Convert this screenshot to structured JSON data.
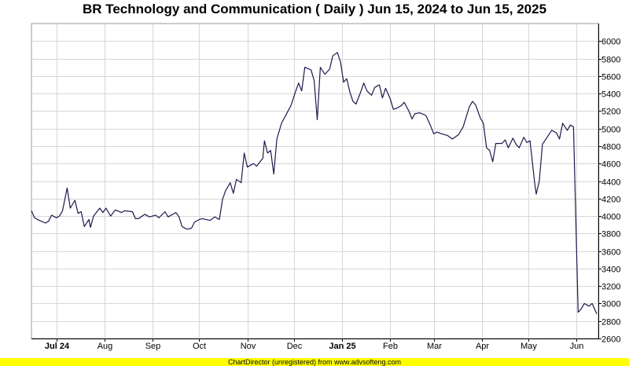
{
  "chart_data": {
    "type": "line",
    "title": "BR Technology and Communication ( Daily ) Jun 15, 2024 to Jun 15, 2025",
    "xlabel": "",
    "ylabel": "",
    "ylim": [
      2600,
      6200
    ],
    "y_ticks": [
      2600,
      2800,
      3000,
      3200,
      3400,
      3600,
      3800,
      4000,
      4200,
      4400,
      4600,
      4800,
      5000,
      5200,
      5400,
      5600,
      5800,
      6000
    ],
    "x_range": [
      "2024-06-15",
      "2025-06-15"
    ],
    "x_tick_labels": [
      {
        "date": "2024-07-01",
        "label": "Jul 24",
        "bold": true
      },
      {
        "date": "2024-08-01",
        "label": "Aug",
        "bold": false
      },
      {
        "date": "2024-09-01",
        "label": "Sep",
        "bold": false
      },
      {
        "date": "2024-10-01",
        "label": "Oct",
        "bold": false
      },
      {
        "date": "2024-11-01",
        "label": "Nov",
        "bold": false
      },
      {
        "date": "2024-12-01",
        "label": "Dec",
        "bold": false
      },
      {
        "date": "2025-01-01",
        "label": "Jan 25",
        "bold": true
      },
      {
        "date": "2025-02-01",
        "label": "Feb",
        "bold": false
      },
      {
        "date": "2025-03-01",
        "label": "Mar",
        "bold": false
      },
      {
        "date": "2025-04-01",
        "label": "Apr",
        "bold": false
      },
      {
        "date": "2025-05-01",
        "label": "May",
        "bold": false
      },
      {
        "date": "2025-06-01",
        "label": "Jun",
        "bold": false
      }
    ],
    "grid": true,
    "line_color": "#1a1a4e",
    "series": [
      {
        "points": [
          [
            "2024-06-15",
            4060
          ],
          [
            "2024-06-17",
            3980
          ],
          [
            "2024-06-20",
            3950
          ],
          [
            "2024-06-24",
            3920
          ],
          [
            "2024-06-26",
            3940
          ],
          [
            "2024-06-28",
            4010
          ],
          [
            "2024-07-01",
            3980
          ],
          [
            "2024-07-03",
            4000
          ],
          [
            "2024-07-05",
            4060
          ],
          [
            "2024-07-08",
            4320
          ],
          [
            "2024-07-10",
            4090
          ],
          [
            "2024-07-13",
            4180
          ],
          [
            "2024-07-15",
            4030
          ],
          [
            "2024-07-17",
            4050
          ],
          [
            "2024-07-19",
            3880
          ],
          [
            "2024-07-22",
            3960
          ],
          [
            "2024-07-23",
            3870
          ],
          [
            "2024-07-25",
            4000
          ],
          [
            "2024-07-29",
            4090
          ],
          [
            "2024-07-31",
            4040
          ],
          [
            "2024-08-02",
            4090
          ],
          [
            "2024-08-05",
            4000
          ],
          [
            "2024-08-08",
            4070
          ],
          [
            "2024-08-12",
            4040
          ],
          [
            "2024-08-14",
            4060
          ],
          [
            "2024-08-19",
            4050
          ],
          [
            "2024-08-21",
            3970
          ],
          [
            "2024-08-23",
            3970
          ],
          [
            "2024-08-27",
            4020
          ],
          [
            "2024-08-30",
            3990
          ],
          [
            "2024-09-03",
            4010
          ],
          [
            "2024-09-05",
            3980
          ],
          [
            "2024-09-09",
            4050
          ],
          [
            "2024-09-11",
            3990
          ],
          [
            "2024-09-13",
            4010
          ],
          [
            "2024-09-16",
            4040
          ],
          [
            "2024-09-18",
            3990
          ],
          [
            "2024-09-20",
            3880
          ],
          [
            "2024-09-23",
            3850
          ],
          [
            "2024-09-26",
            3860
          ],
          [
            "2024-09-28",
            3930
          ],
          [
            "2024-10-01",
            3960
          ],
          [
            "2024-10-03",
            3970
          ],
          [
            "2024-10-08",
            3950
          ],
          [
            "2024-10-11",
            3990
          ],
          [
            "2024-10-14",
            3960
          ],
          [
            "2024-10-16",
            4190
          ],
          [
            "2024-10-18",
            4290
          ],
          [
            "2024-10-21",
            4380
          ],
          [
            "2024-10-23",
            4260
          ],
          [
            "2024-10-25",
            4420
          ],
          [
            "2024-10-28",
            4380
          ],
          [
            "2024-10-30",
            4720
          ],
          [
            "2024-11-01",
            4560
          ],
          [
            "2024-11-05",
            4600
          ],
          [
            "2024-11-07",
            4570
          ],
          [
            "2024-11-11",
            4660
          ],
          [
            "2024-11-12",
            4860
          ],
          [
            "2024-11-14",
            4720
          ],
          [
            "2024-11-16",
            4750
          ],
          [
            "2024-11-18",
            4480
          ],
          [
            "2024-11-20",
            4880
          ],
          [
            "2024-11-23",
            5060
          ],
          [
            "2024-11-26",
            5160
          ],
          [
            "2024-11-29",
            5260
          ],
          [
            "2024-12-02",
            5420
          ],
          [
            "2024-12-04",
            5520
          ],
          [
            "2024-12-06",
            5430
          ],
          [
            "2024-12-08",
            5700
          ],
          [
            "2024-12-12",
            5670
          ],
          [
            "2024-12-14",
            5550
          ],
          [
            "2024-12-16",
            5100
          ],
          [
            "2024-12-18",
            5700
          ],
          [
            "2024-12-21",
            5620
          ],
          [
            "2024-12-24",
            5680
          ],
          [
            "2024-12-26",
            5830
          ],
          [
            "2024-12-29",
            5870
          ],
          [
            "2024-12-31",
            5760
          ],
          [
            "2025-01-02",
            5530
          ],
          [
            "2025-01-04",
            5570
          ],
          [
            "2025-01-06",
            5420
          ],
          [
            "2025-01-08",
            5310
          ],
          [
            "2025-01-10",
            5280
          ],
          [
            "2025-01-13",
            5420
          ],
          [
            "2025-01-15",
            5520
          ],
          [
            "2025-01-17",
            5430
          ],
          [
            "2025-01-20",
            5380
          ],
          [
            "2025-01-22",
            5470
          ],
          [
            "2025-01-25",
            5500
          ],
          [
            "2025-01-27",
            5350
          ],
          [
            "2025-01-29",
            5460
          ],
          [
            "2025-02-01",
            5340
          ],
          [
            "2025-02-03",
            5220
          ],
          [
            "2025-02-05",
            5230
          ],
          [
            "2025-02-08",
            5260
          ],
          [
            "2025-02-10",
            5300
          ],
          [
            "2025-02-13",
            5200
          ],
          [
            "2025-02-15",
            5110
          ],
          [
            "2025-02-17",
            5170
          ],
          [
            "2025-02-20",
            5180
          ],
          [
            "2025-02-24",
            5150
          ],
          [
            "2025-02-27",
            5030
          ],
          [
            "2025-03-01",
            4940
          ],
          [
            "2025-03-03",
            4960
          ],
          [
            "2025-03-06",
            4940
          ],
          [
            "2025-03-10",
            4920
          ],
          [
            "2025-03-13",
            4880
          ],
          [
            "2025-03-17",
            4930
          ],
          [
            "2025-03-20",
            5020
          ],
          [
            "2025-03-24",
            5250
          ],
          [
            "2025-03-26",
            5310
          ],
          [
            "2025-03-28",
            5270
          ],
          [
            "2025-03-31",
            5120
          ],
          [
            "2025-04-02",
            5060
          ],
          [
            "2025-04-04",
            4780
          ],
          [
            "2025-04-06",
            4750
          ],
          [
            "2025-04-08",
            4620
          ],
          [
            "2025-04-10",
            4830
          ],
          [
            "2025-04-14",
            4830
          ],
          [
            "2025-04-16",
            4870
          ],
          [
            "2025-04-18",
            4780
          ],
          [
            "2025-04-21",
            4890
          ],
          [
            "2025-04-23",
            4820
          ],
          [
            "2025-04-25",
            4780
          ],
          [
            "2025-04-28",
            4900
          ],
          [
            "2025-04-30",
            4840
          ],
          [
            "2025-05-02",
            4860
          ],
          [
            "2025-05-05",
            4380
          ],
          [
            "2025-05-06",
            4250
          ],
          [
            "2025-05-08",
            4400
          ],
          [
            "2025-05-10",
            4820
          ],
          [
            "2025-05-13",
            4900
          ],
          [
            "2025-05-16",
            4980
          ],
          [
            "2025-05-19",
            4950
          ],
          [
            "2025-05-21",
            4880
          ],
          [
            "2025-05-23",
            5060
          ],
          [
            "2025-05-26",
            4980
          ],
          [
            "2025-05-28",
            5040
          ],
          [
            "2025-05-30",
            5020
          ],
          [
            "2025-06-02",
            2900
          ],
          [
            "2025-06-04",
            2940
          ],
          [
            "2025-06-06",
            3000
          ],
          [
            "2025-06-09",
            2970
          ],
          [
            "2025-06-11",
            3000
          ],
          [
            "2025-06-14",
            2880
          ]
        ]
      }
    ]
  },
  "footer": {
    "text": "ChartDirector (unregistered) from www.advsofteng.com"
  }
}
